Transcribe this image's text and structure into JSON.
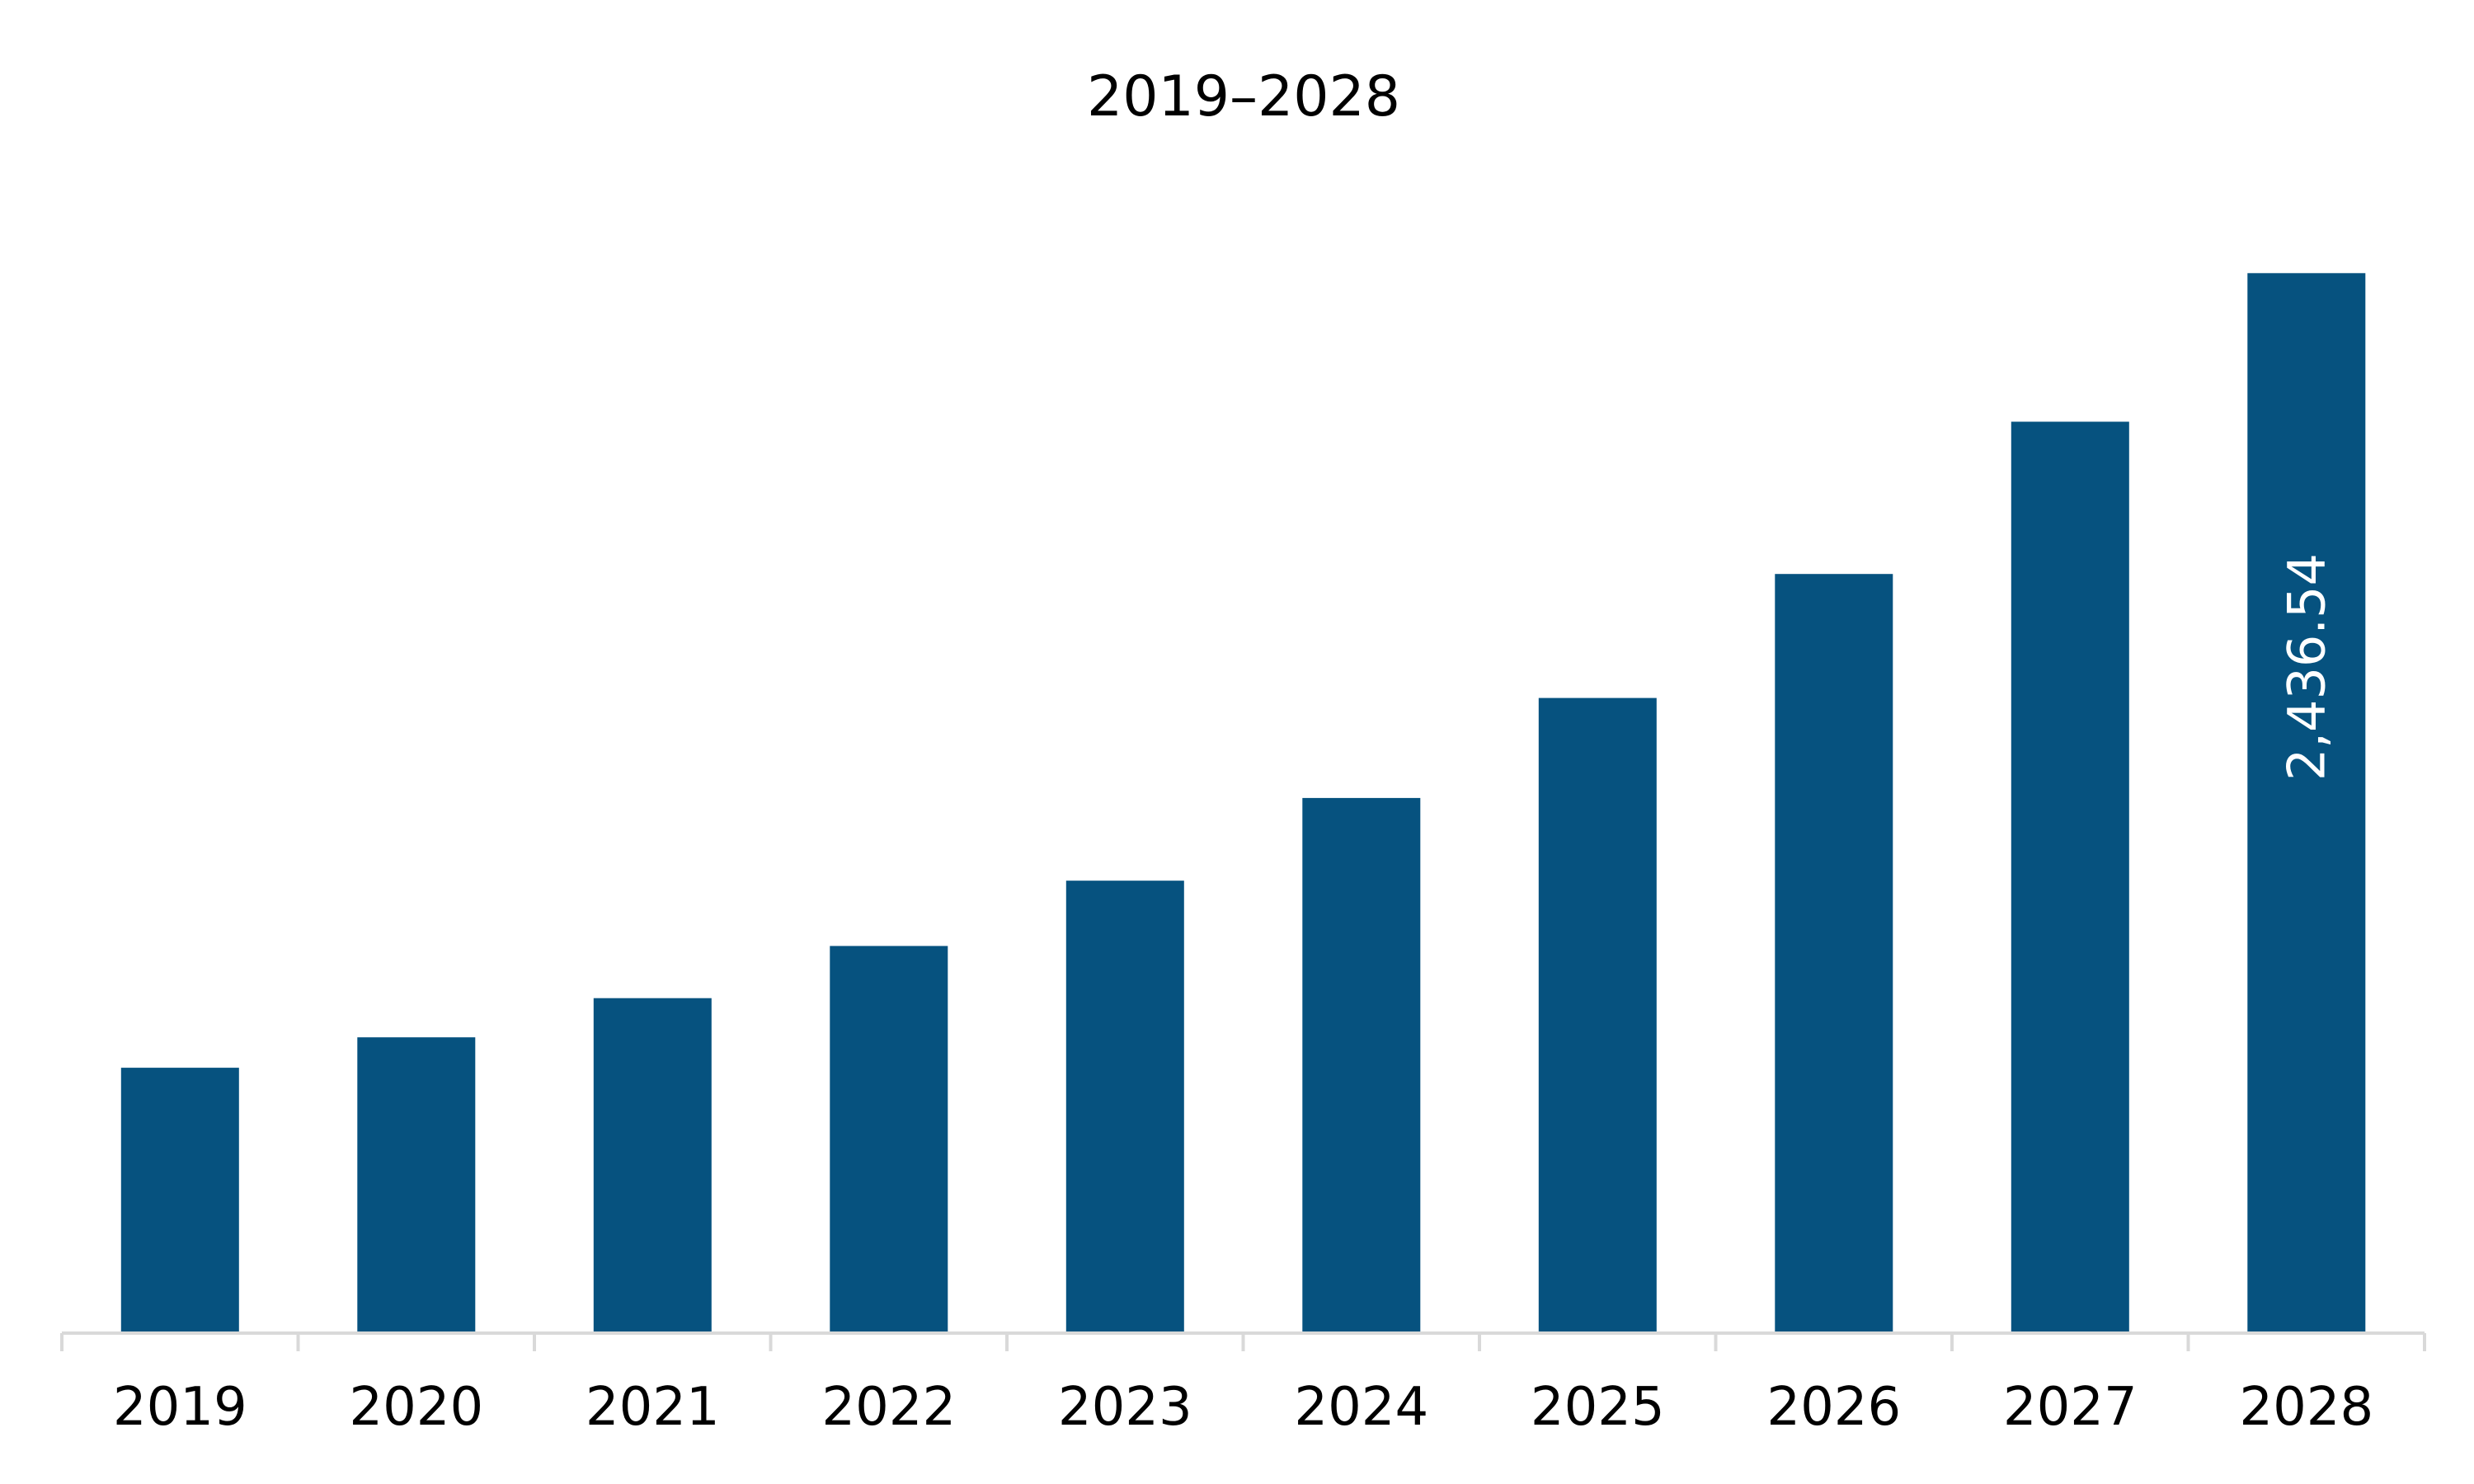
{
  "chart_data": {
    "type": "bar",
    "title": "2019–2028",
    "categories": [
      "2019",
      "2020",
      "2021",
      "2022",
      "2023",
      "2024",
      "2025",
      "2026",
      "2027",
      "2028"
    ],
    "values": [
      610,
      680,
      770,
      890,
      1040,
      1230,
      1460,
      1745,
      2095,
      2436.54
    ],
    "data_labels": [
      "",
      "",
      "",
      "",
      "",
      "",
      "",
      "",
      "",
      "2,436.54"
    ],
    "xlabel": "",
    "ylabel": "",
    "ylim": [
      0,
      2600
    ],
    "grid": false,
    "legend": "none",
    "bar_color": "#06527f",
    "axis_color": "#d9d9d9"
  }
}
